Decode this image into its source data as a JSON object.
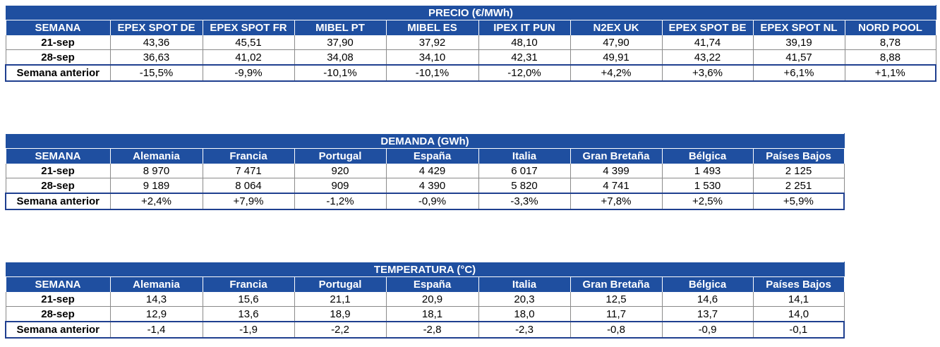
{
  "precio": {
    "title": "PRECIO (€/MWh)",
    "headers": [
      "SEMANA",
      "EPEX SPOT DE",
      "EPEX SPOT FR",
      "MIBEL PT",
      "MIBEL ES",
      "IPEX IT PUN",
      "N2EX UK",
      "EPEX SPOT BE",
      "EPEX SPOT NL",
      "NORD POOL"
    ],
    "rows": [
      [
        "21-sep",
        "43,36",
        "45,51",
        "37,90",
        "37,92",
        "48,10",
        "47,90",
        "41,74",
        "39,19",
        "8,78"
      ],
      [
        "28-sep",
        "36,63",
        "41,02",
        "34,08",
        "34,10",
        "42,31",
        "49,91",
        "43,22",
        "41,57",
        "8,88"
      ],
      [
        "Semana anterior",
        "-15,5%",
        "-9,9%",
        "-10,1%",
        "-10,1%",
        "-12,0%",
        "+4,2%",
        "+3,6%",
        "+6,1%",
        "+1,1%"
      ]
    ]
  },
  "demanda": {
    "title": "DEMANDA (GWh)",
    "headers": [
      "SEMANA",
      "Alemania",
      "Francia",
      "Portugal",
      "España",
      "Italia",
      "Gran Bretaña",
      "Bélgica",
      "Países Bajos"
    ],
    "rows": [
      [
        "21-sep",
        "8 970",
        "7 471",
        "920",
        "4 429",
        "6 017",
        "4 399",
        "1 493",
        "2 125"
      ],
      [
        "28-sep",
        "9 189",
        "8 064",
        "909",
        "4 390",
        "5 820",
        "4 741",
        "1 530",
        "2 251"
      ],
      [
        "Semana anterior",
        "+2,4%",
        "+7,9%",
        "-1,2%",
        "-0,9%",
        "-3,3%",
        "+7,8%",
        "+2,5%",
        "+5,9%"
      ]
    ]
  },
  "temperatura": {
    "title": "TEMPERATURA (°C)",
    "headers": [
      "SEMANA",
      "Alemania",
      "Francia",
      "Portugal",
      "España",
      "Italia",
      "Gran Bretaña",
      "Bélgica",
      "Países Bajos"
    ],
    "rows": [
      [
        "21-sep",
        "14,3",
        "15,6",
        "21,1",
        "20,9",
        "20,3",
        "12,5",
        "14,6",
        "14,1"
      ],
      [
        "28-sep",
        "12,9",
        "13,6",
        "18,9",
        "18,1",
        "18,0",
        "11,7",
        "13,7",
        "14,0"
      ],
      [
        "Semana anterior",
        "-1,4",
        "-1,9",
        "-2,2",
        "-2,8",
        "-2,3",
        "-0,8",
        "-0,9",
        "-0,1"
      ]
    ]
  }
}
